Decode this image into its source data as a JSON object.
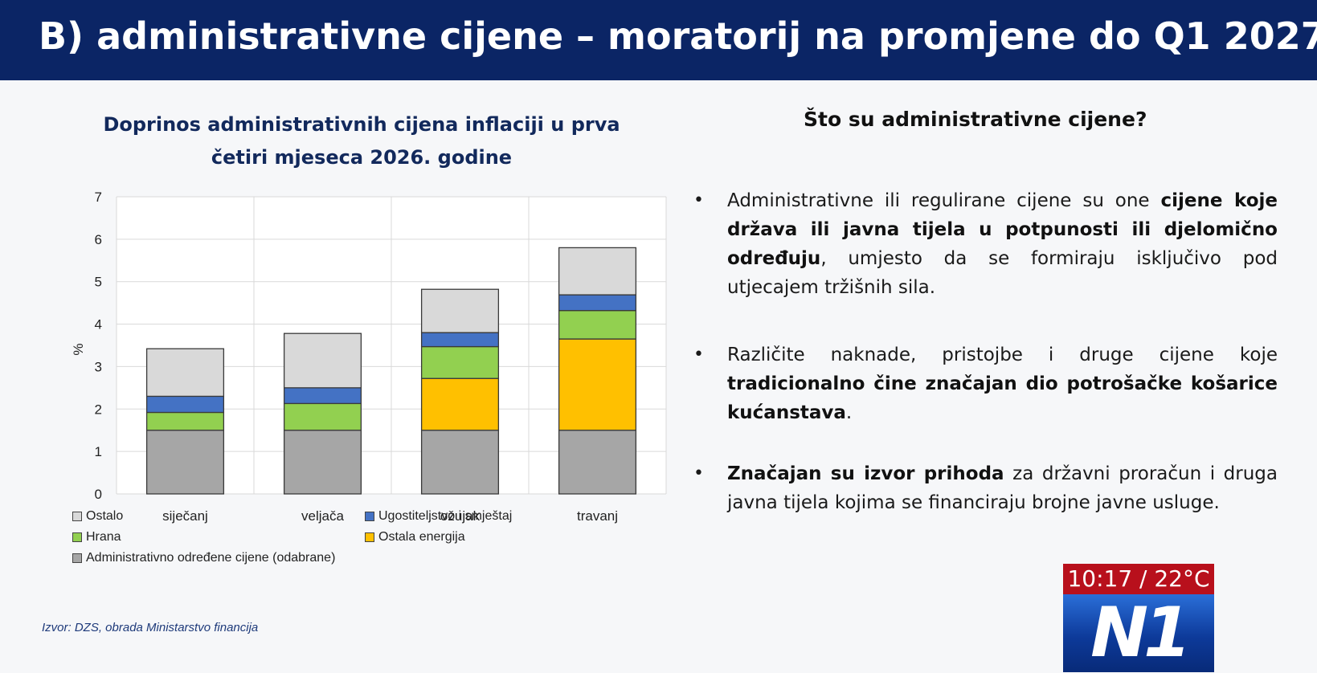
{
  "header": {
    "title": "B) administrativne cijene – moratorij na promjene do Q1 2027."
  },
  "chart_title": "Doprinos administrativnih cijena inflaciji u prva četiri mjeseca 2026. godine",
  "chart_data": {
    "type": "bar",
    "stacked": true,
    "categories": [
      "siječanj",
      "veljača",
      "ožujak",
      "travanj"
    ],
    "ylabel": "%",
    "ylim": [
      0,
      7
    ],
    "yticks": [
      "0",
      "1",
      "2",
      "3",
      "4",
      "5",
      "6",
      "7"
    ],
    "grid": true,
    "series": [
      {
        "name": "Administrativno određene cijene (odabrane)",
        "color": "#a6a6a6",
        "values": [
          1.5,
          1.5,
          1.5,
          1.5
        ]
      },
      {
        "name": "Ostala energija",
        "color": "#ffc000",
        "values": [
          0.0,
          0.0,
          1.22,
          2.15
        ]
      },
      {
        "name": "Hrana",
        "color": "#92d050",
        "values": [
          0.42,
          0.63,
          0.75,
          0.67
        ]
      },
      {
        "name": "Ugostiteljstvo i smještaj",
        "color": "#4472c4",
        "values": [
          0.38,
          0.37,
          0.33,
          0.37
        ]
      },
      {
        "name": "Ostalo",
        "color": "#d9d9d9",
        "values": [
          1.12,
          1.28,
          1.02,
          1.11
        ]
      }
    ],
    "legend": [
      {
        "label": "Ostalo",
        "color": "#d9d9d9"
      },
      {
        "label": "Ugostiteljstvo i smještaj",
        "color": "#4472c4"
      },
      {
        "label": "Hrana",
        "color": "#92d050"
      },
      {
        "label": "Ostala energija",
        "color": "#ffc000"
      },
      {
        "label": "Administrativno određene cijene (odabrane)",
        "color": "#a6a6a6"
      }
    ]
  },
  "source": "Izvor: DZS, obrada Ministarstvo financija",
  "right_panel": {
    "title": "Što su administrativne cijene?",
    "bullets": [
      {
        "parts": [
          {
            "text": "Administrativne ili regulirane cijene su one ",
            "bold": false
          },
          {
            "text": "cijene koje država ili javna tijela u potpunosti ili djelomično određuju",
            "bold": true
          },
          {
            "text": ", umjesto da se formiraju isključivo pod utjecajem tržišnih sila.",
            "bold": false
          }
        ]
      },
      {
        "parts": [
          {
            "text": "Različite naknade, pristojbe i druge cijene koje ",
            "bold": false
          },
          {
            "text": "tradicionalno čine značajan dio potrošačke košarice kućanstava",
            "bold": true
          },
          {
            "text": ".",
            "bold": false
          }
        ]
      },
      {
        "parts": [
          {
            "text": "Značajan su izvor prihoda",
            "bold": true
          },
          {
            "text": " za državni proračun i druga javna tijela kojima se financiraju brojne javne usluge.",
            "bold": false
          }
        ]
      }
    ]
  },
  "badge": {
    "time": "10:17 / 22°C",
    "logo": "N1"
  }
}
